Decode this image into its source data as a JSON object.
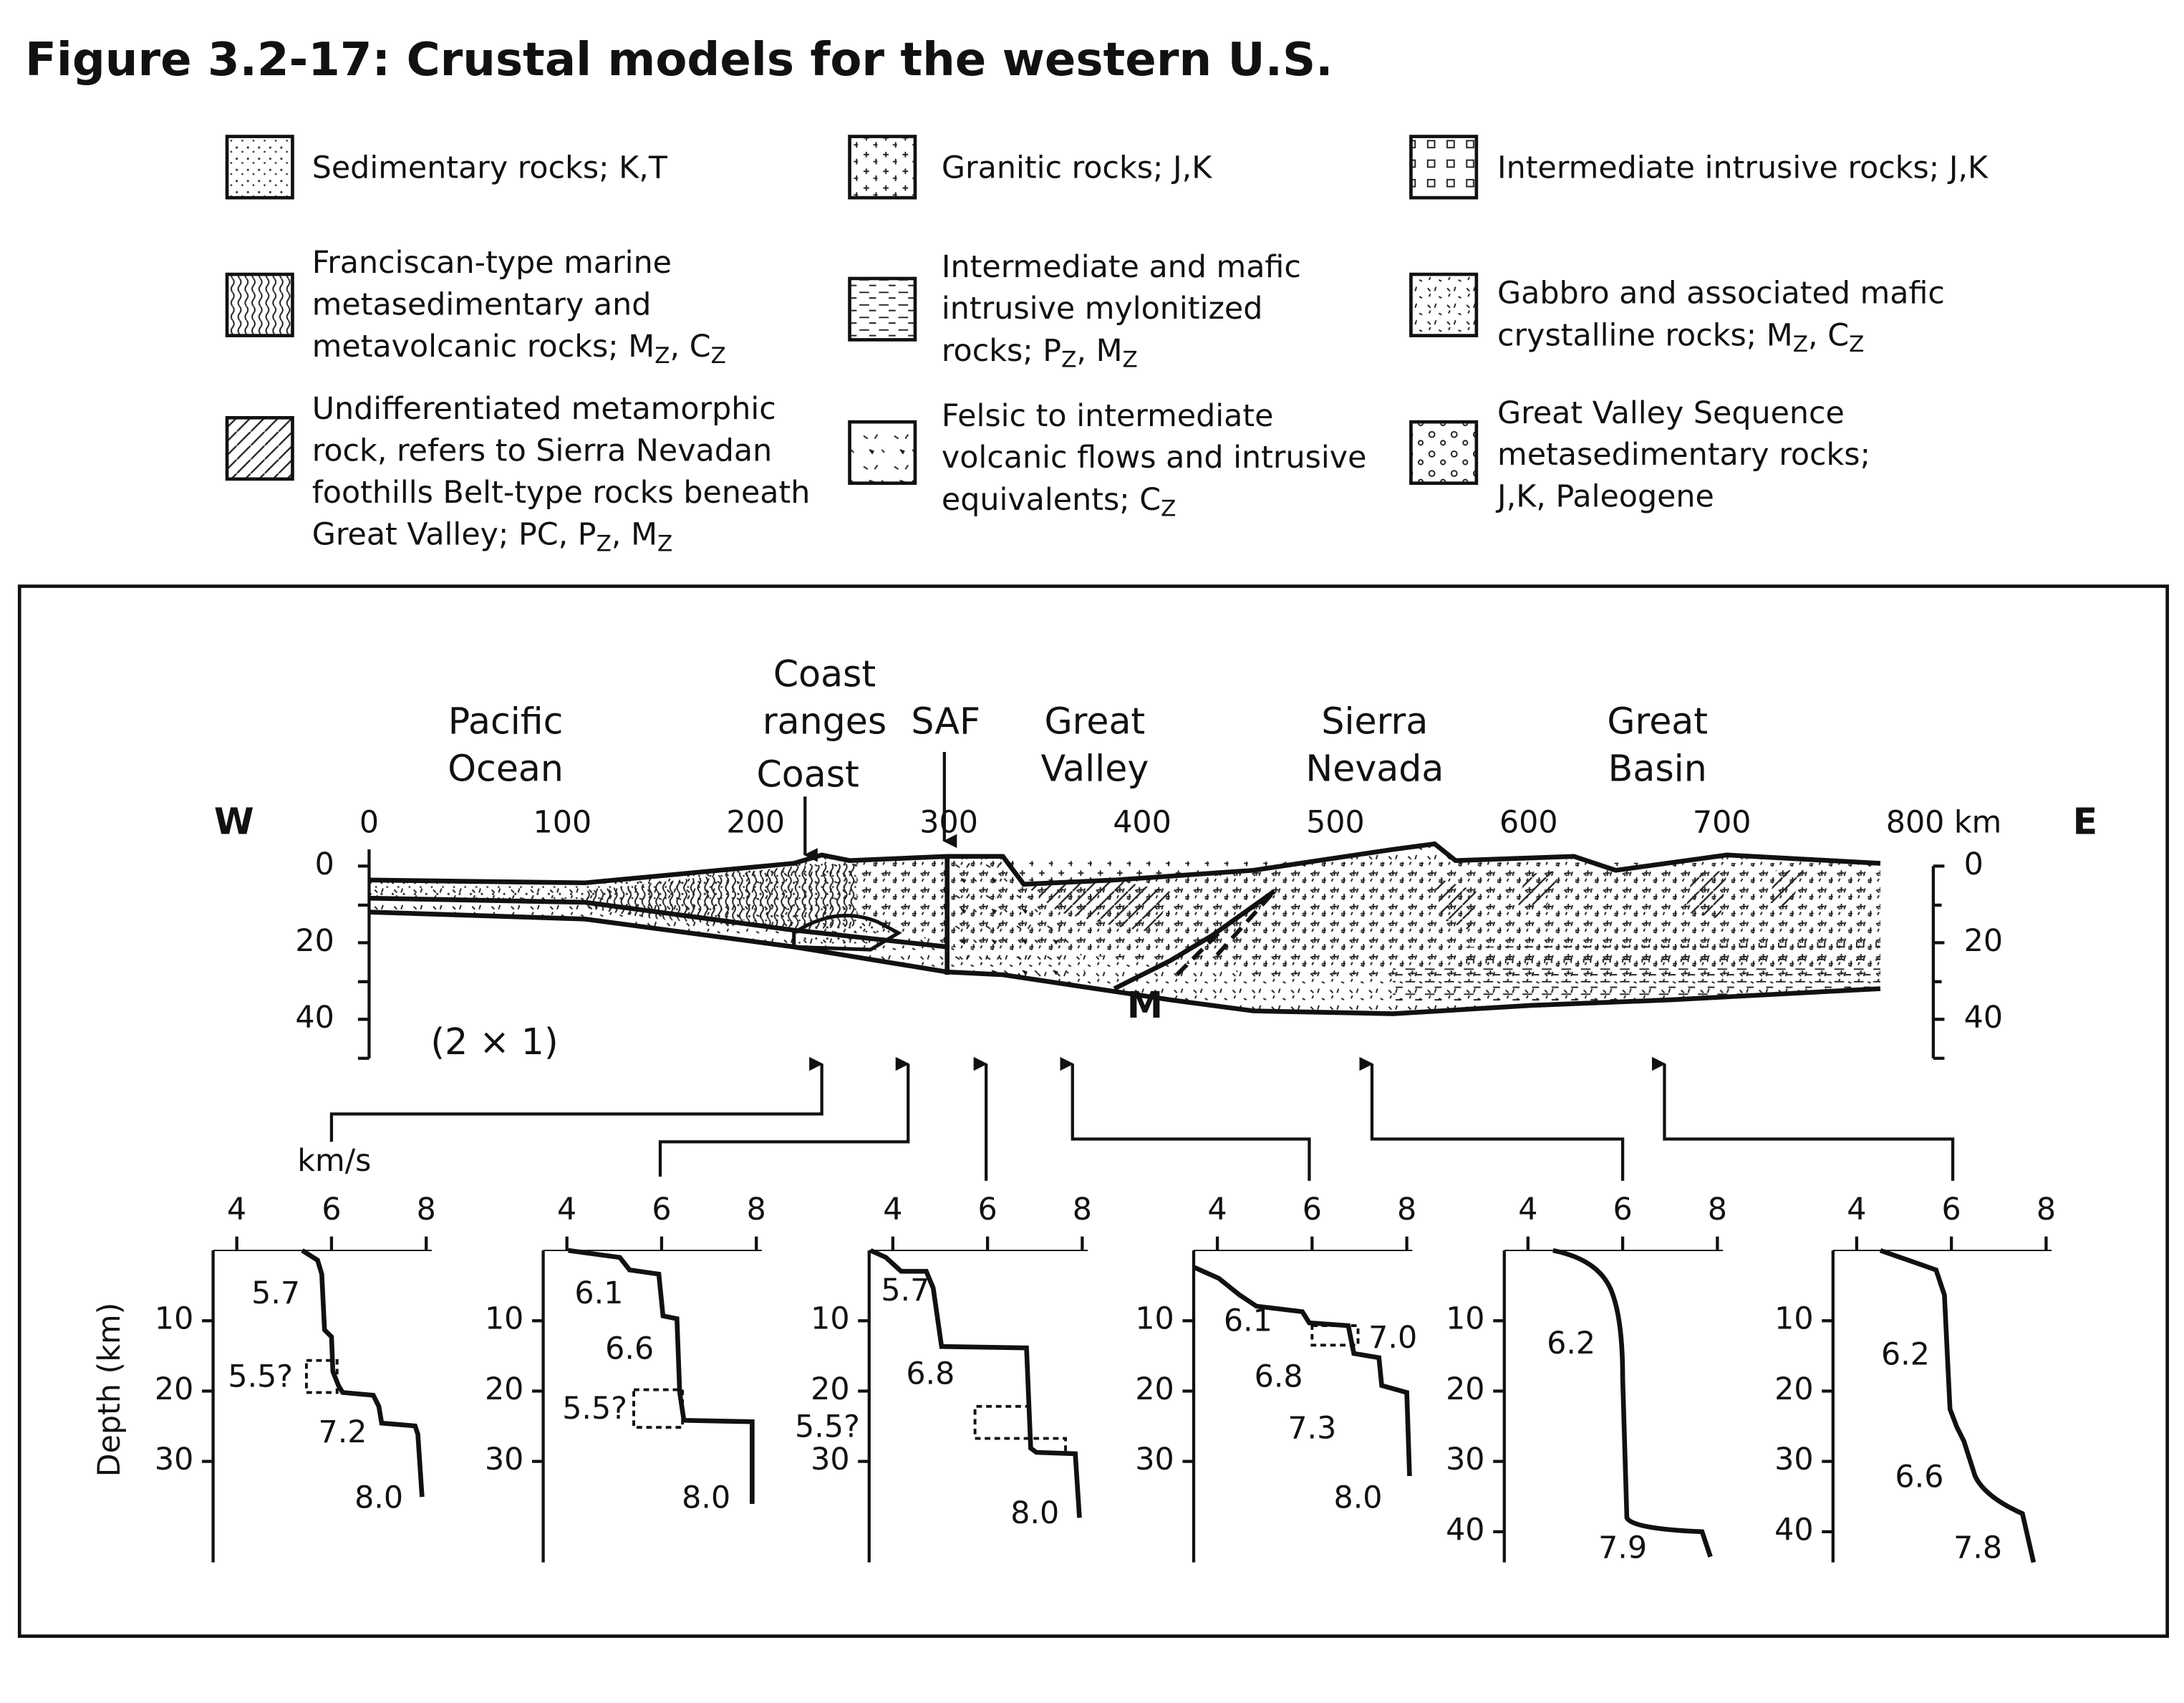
{
  "header": {
    "title": "Figure 3.2-17: Crustal models for the western U.S."
  },
  "legend": {
    "items": [
      {
        "lines": [
          "Sedimentary rocks; K,T"
        ]
      },
      {
        "lines": [
          "Granitic rocks; J,K"
        ]
      },
      {
        "lines": [
          "Intermediate intrusive rocks; J,K"
        ]
      },
      {
        "lines": [
          "Franciscan-type marine",
          "metasedimentary and",
          [
            {
              "text": "metavolcanic rocks; M"
            },
            {
              "text": "Z",
              "sub": true
            },
            {
              "text": ", C"
            },
            {
              "text": "Z",
              "sub": true
            }
          ]
        ]
      },
      {
        "lines": [
          "Intermediate and mafic",
          "intrusive mylonitized",
          [
            {
              "text": "rocks; P"
            },
            {
              "text": "Z",
              "sub": true
            },
            {
              "text": ", M"
            },
            {
              "text": "Z",
              "sub": true
            }
          ]
        ]
      },
      {
        "lines": [
          "Gabbro and associated mafic",
          [
            {
              "text": "crystalline rocks; M"
            },
            {
              "text": "Z",
              "sub": true
            },
            {
              "text": ", C"
            },
            {
              "text": "Z",
              "sub": true
            }
          ]
        ]
      },
      {
        "lines": [
          "Undifferentiated metamorphic",
          "rock, refers to Sierra Nevadan",
          "foothills Belt-type rocks beneath",
          [
            {
              "text": "Great Valley; PC, P"
            },
            {
              "text": "Z",
              "sub": true
            },
            {
              "text": ", M"
            },
            {
              "text": "Z",
              "sub": true
            }
          ]
        ]
      },
      {
        "lines": [
          "Felsic to intermediate",
          "volcanic flows and intrusive",
          [
            {
              "text": "equivalents; C"
            },
            {
              "text": "Z",
              "sub": true
            }
          ]
        ]
      },
      {
        "lines": [
          "Great Valley Sequence",
          "metasedimentary rocks;",
          "J,K, Paleogene"
        ]
      }
    ]
  },
  "section": {
    "x_ticks": [
      0,
      100,
      200,
      300,
      400,
      500,
      600,
      700,
      800
    ],
    "x_unit": "km",
    "depth_ticks": [
      0,
      20,
      40
    ],
    "west": "W",
    "east": "E",
    "regions": [
      {
        "lines": [
          "Pacific",
          "Ocean"
        ]
      },
      {
        "lines": [
          "Coast",
          "ranges"
        ]
      },
      {
        "lines": [
          "SAF"
        ]
      },
      {
        "lines": [
          "Great",
          "Valley"
        ]
      },
      {
        "lines": [
          "Sierra",
          "Nevada"
        ]
      },
      {
        "lines": [
          "Great",
          "Basin"
        ]
      }
    ],
    "coast": "Coast",
    "moho": "M",
    "scale_note": "(2 × 1)"
  },
  "profiles": {
    "velocity_unit": "km/s",
    "depth_label": "Depth (km)",
    "velocity_ticks": [
      4,
      6,
      8
    ],
    "panels": [
      {
        "depth_ticks": [
          10,
          20,
          30
        ],
        "labels": [
          "5.7",
          "5.5?",
          "7.2",
          "8.0"
        ]
      },
      {
        "depth_ticks": [
          10,
          20,
          30
        ],
        "labels": [
          "6.1",
          "6.6",
          "5.5?",
          "8.0"
        ]
      },
      {
        "depth_ticks": [
          10,
          20,
          30
        ],
        "labels": [
          "5.7",
          "6.8",
          "5.5?",
          "8.0"
        ]
      },
      {
        "depth_ticks": [
          10,
          20,
          30
        ],
        "labels": [
          "6.1",
          "7.0",
          "6.8",
          "7.3",
          "8.0"
        ]
      },
      {
        "depth_ticks": [
          10,
          20,
          30,
          40
        ],
        "labels": [
          "6.2",
          "7.9"
        ]
      },
      {
        "depth_ticks": [
          10,
          20,
          30,
          40
        ],
        "labels": [
          "6.2",
          "6.6",
          "7.8"
        ]
      }
    ]
  }
}
